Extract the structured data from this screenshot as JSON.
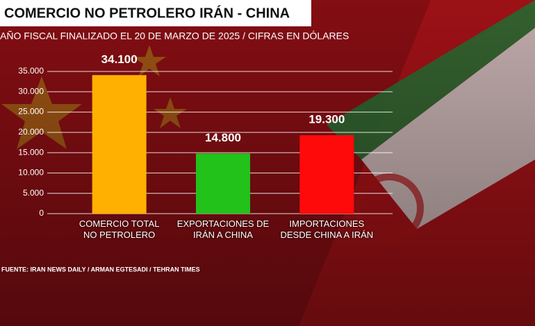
{
  "chart_data": {
    "type": "bar",
    "title": "COMERCIO NO PETROLERO IRÁN - CHINA",
    "subtitle": "AÑO FISCAL FINALIZADO EL 20 DE MARZO DE 2025 / CIFRAS EN DÓLARES",
    "source": "FUENTE: IRAN NEWS DAILY / ARMAN EGTESADI / TEHRAN TIMES",
    "categories": [
      "COMERCIO TOTAL\nNO PETROLERO",
      "EXPORTACIONES DE\nIRÁN A CHINA",
      "IMPORTACIONES\nDESDE CHINA A IRÁN"
    ],
    "values": [
      34100,
      14800,
      19300
    ],
    "value_labels": [
      "34.100",
      "14.800",
      "19.300"
    ],
    "colors": [
      "#ffb000",
      "#22c21a",
      "#ff0a0a"
    ],
    "ylim": [
      0,
      35000
    ],
    "yticks": [
      {
        "value": 0,
        "label": "0"
      },
      {
        "value": 5000,
        "label": "5.000"
      },
      {
        "value": 10000,
        "label": "10.000"
      },
      {
        "value": 15000,
        "label": "15.000"
      },
      {
        "value": 20000,
        "label": "20.000"
      },
      {
        "value": 25000,
        "label": "25.000"
      },
      {
        "value": 30000,
        "label": "30.000"
      },
      {
        "value": 35000,
        "label": "35.000"
      }
    ],
    "grid": true
  }
}
